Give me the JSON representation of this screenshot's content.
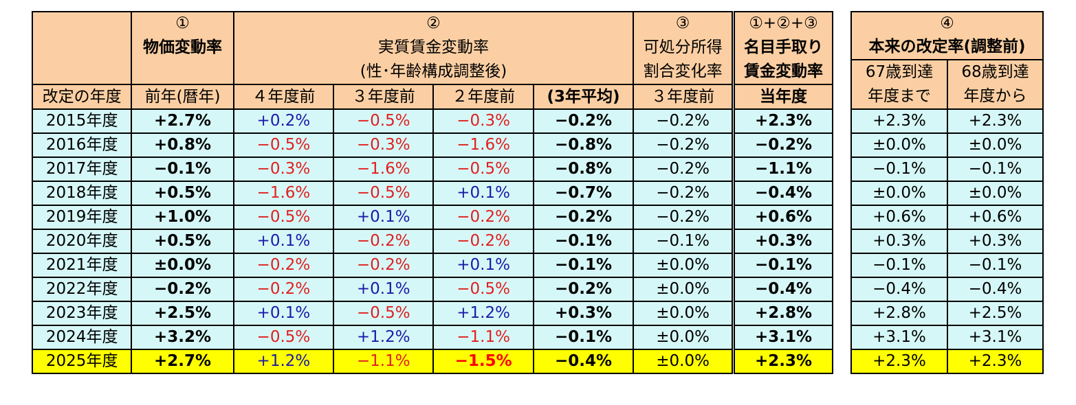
{
  "main_table": {
    "header": {
      "col1_num": "①",
      "col1_title": "物価変動率",
      "col2_num": "②",
      "col2_title": "実質賃金変動率",
      "col2_sub": "(性･年齢構成調整後)",
      "col3_num": "③",
      "col3_title_1": "可処分所得",
      "col3_title_2": "割合変化率",
      "col4_num": "①+②+③",
      "col4_title_1": "名目手取り",
      "col4_title_2": "賃金変動率",
      "sub": {
        "year": "改定の年度",
        "prev": "前年(暦年)",
        "y4": "４年度前",
        "y3": "３年度前",
        "y2": "２年度前",
        "avg3": "(3年平均)",
        "y3b": "３年度前",
        "cur": "当年度"
      }
    },
    "rows": [
      {
        "year": "2015年度",
        "c1": "+2.7%",
        "c2": "+0.2%",
        "c3": "−0.5%",
        "c4": "−0.3%",
        "c5": "−0.2%",
        "c6": "−0.2%",
        "c7": "+2.3%"
      },
      {
        "year": "2016年度",
        "c1": "+0.8%",
        "c2": "−0.5%",
        "c3": "−0.3%",
        "c4": "−1.6%",
        "c5": "−0.8%",
        "c6": "−0.2%",
        "c7": "−0.2%"
      },
      {
        "year": "2017年度",
        "c1": "−0.1%",
        "c2": "−0.3%",
        "c3": "−1.6%",
        "c4": "−0.5%",
        "c5": "−0.8%",
        "c6": "−0.2%",
        "c7": "−1.1%"
      },
      {
        "year": "2018年度",
        "c1": "+0.5%",
        "c2": "−1.6%",
        "c3": "−0.5%",
        "c4": "+0.1%",
        "c5": "−0.7%",
        "c6": "−0.2%",
        "c7": "−0.4%"
      },
      {
        "year": "2019年度",
        "c1": "+1.0%",
        "c2": "−0.5%",
        "c3": "+0.1%",
        "c4": "−0.2%",
        "c5": "−0.2%",
        "c6": "−0.2%",
        "c7": "+0.6%"
      },
      {
        "year": "2020年度",
        "c1": "+0.5%",
        "c2": "+0.1%",
        "c3": "−0.2%",
        "c4": "−0.2%",
        "c5": "−0.1%",
        "c6": "−0.1%",
        "c7": "+0.3%"
      },
      {
        "year": "2021年度",
        "c1": "±0.0%",
        "c2": "−0.2%",
        "c3": "−0.2%",
        "c4": "+0.1%",
        "c5": "−0.1%",
        "c6": "±0.0%",
        "c7": "−0.1%"
      },
      {
        "year": "2022年度",
        "c1": "−0.2%",
        "c2": "−0.2%",
        "c3": "+0.1%",
        "c4": "−0.5%",
        "c5": "−0.2%",
        "c6": "±0.0%",
        "c7": "−0.4%"
      },
      {
        "year": "2023年度",
        "c1": "+2.5%",
        "c2": "+0.1%",
        "c3": "−0.5%",
        "c4": "+1.2%",
        "c5": "+0.3%",
        "c6": "±0.0%",
        "c7": "+2.8%"
      },
      {
        "year": "2024年度",
        "c1": "+3.2%",
        "c2": "−0.5%",
        "c3": "+1.2%",
        "c4": "−1.1%",
        "c5": "−0.1%",
        "c6": "±0.0%",
        "c7": "+3.1%"
      },
      {
        "year": "2025年度",
        "c1": "+2.7%",
        "c2": "+1.2%",
        "c3": "−1.1%",
        "c4": "−1.5%",
        "c5": "−0.4%",
        "c6": "±0.0%",
        "c7": "+2.3%"
      }
    ]
  },
  "side_table": {
    "header": {
      "num": "④",
      "title": "本来の改定率(調整前)",
      "a1": "67歳到達",
      "a2": "年度まで",
      "b1": "68歳到達",
      "b2": "年度から"
    },
    "rows": [
      {
        "a": "+2.3%",
        "b": "+2.3%"
      },
      {
        "a": "±0.0%",
        "b": "±0.0%"
      },
      {
        "a": "−0.1%",
        "b": "−0.1%"
      },
      {
        "a": "±0.0%",
        "b": "±0.0%"
      },
      {
        "a": "+0.6%",
        "b": "+0.6%"
      },
      {
        "a": "+0.3%",
        "b": "+0.3%"
      },
      {
        "a": "−0.1%",
        "b": "−0.1%"
      },
      {
        "a": "−0.4%",
        "b": "−0.4%"
      },
      {
        "a": "+2.8%",
        "b": "+2.5%"
      },
      {
        "a": "+3.1%",
        "b": "+3.1%"
      },
      {
        "a": "+2.3%",
        "b": "+2.3%"
      }
    ]
  },
  "colors": {
    "header_bg": "#fbcfa3",
    "row_bg": "#d6f7f7",
    "highlight_bg": "#ffff00",
    "positive": "#1a1aa8",
    "negative": "#e02020"
  }
}
